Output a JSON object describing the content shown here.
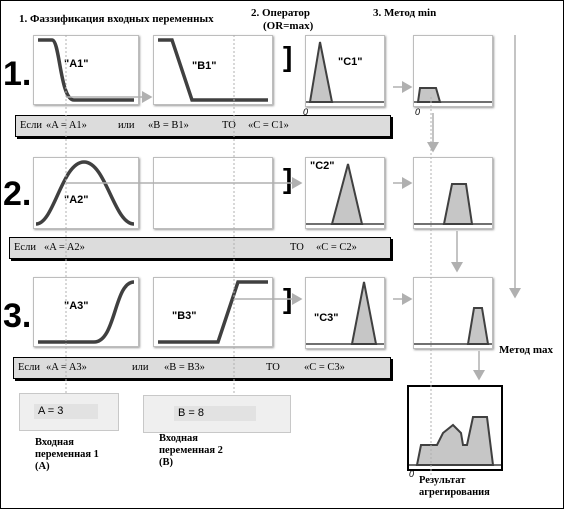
{
  "headings": {
    "fuzzification": "1. Фаззификация входных переменных",
    "operator": "2. Оператор",
    "operator_sub": "(OR=max)",
    "method_min": "3. Метод min",
    "method_max": "Метод max"
  },
  "row_numbers": [
    "1.",
    "2.",
    "3."
  ],
  "panel_labels": {
    "a1": "\"A1\"",
    "b1": "\"B1\"",
    "c1": "\"C1\"",
    "a2": "\"A2\"",
    "c2": "\"C2\"",
    "a3": "\"A3\"",
    "b3": "\"B3\"",
    "c3": "\"C3\""
  },
  "axis_zero": "0",
  "rules": {
    "r1": {
      "if": "Если",
      "a": "«A = A1»",
      "or": "или",
      "b": "«B = B1»",
      "then": "ТО",
      "c": "«C = C1»"
    },
    "r2": {
      "if": "Если",
      "a": "«A = A2»",
      "then": "ТО",
      "c": "«C = C2»"
    },
    "r3": {
      "if": "Если",
      "a": "«A = A3»",
      "or": "или",
      "b": "«B = B3»",
      "then": "ТО",
      "c": "«C = C3»"
    }
  },
  "inputs": {
    "a_value": "A = 3",
    "b_value": "B = 8",
    "a_caption": [
      "Входная",
      "переменная 1",
      "(A)"
    ],
    "b_caption": [
      "Входная",
      "переменная 2",
      "(B)"
    ]
  },
  "result_caption": [
    "Результат",
    "агрегирования"
  ],
  "colors": {
    "fill": "#c6c6c6",
    "curve": "#404040",
    "panel_border": "#bdbdbd",
    "rule_bg": "#dcdcdc",
    "guide": "#b0b0b0"
  }
}
